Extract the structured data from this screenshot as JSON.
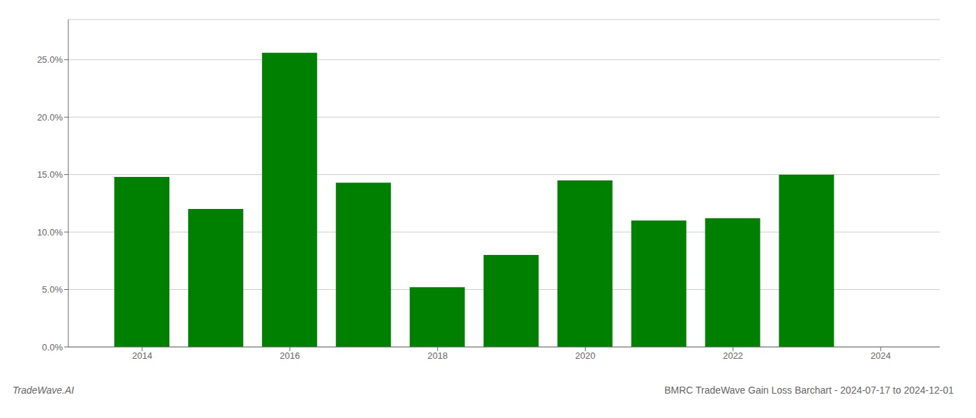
{
  "chart_data": {
    "type": "bar",
    "title": "BMRC TradeWave Gain Loss Barchart - 2024-07-17 to 2024-12-01",
    "annotations": [
      "TradeWave.AI"
    ],
    "x": [
      2014,
      2015,
      2016,
      2017,
      2018,
      2019,
      2020,
      2021,
      2022,
      2023
    ],
    "values": [
      0.148,
      0.12,
      0.256,
      0.143,
      0.052,
      0.08,
      0.145,
      0.11,
      0.112,
      0.15
    ],
    "color": "#008000",
    "xlim": [
      2013.0,
      2024.8
    ],
    "xticks": [
      2014,
      2016,
      2018,
      2020,
      2022,
      2024
    ],
    "ylim": [
      0,
      0.285
    ],
    "yticks": [
      {
        "value": 0.0,
        "label": "0.0%"
      },
      {
        "value": 0.05,
        "label": "5.0%"
      },
      {
        "value": 0.1,
        "label": "10.0%"
      },
      {
        "value": 0.15,
        "label": "15.0%"
      },
      {
        "value": 0.2,
        "label": "20.0%"
      },
      {
        "value": 0.25,
        "label": "25.0%"
      }
    ],
    "grid": true
  }
}
